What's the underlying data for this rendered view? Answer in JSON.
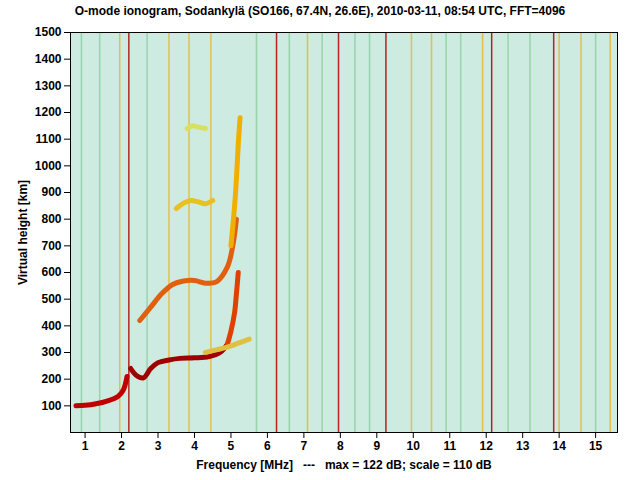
{
  "chart_data": {
    "type": "line",
    "title": "O-mode ionogram, Sodankylä (SO166, 67.4N, 26.6E), 2010-03-11, 08:54 UTC, FFT=4096",
    "x_label": "Frequency [MHz]   ---   max = 122 dB; scale = 110 dB",
    "y_label": "Virtual height [km]",
    "xlim": [
      0.6,
      15.6
    ],
    "xticks": [
      1,
      2,
      3,
      4,
      5,
      6,
      7,
      8,
      9,
      10,
      11,
      12,
      13,
      14,
      15
    ],
    "ylim": [
      0,
      1500
    ],
    "yticks": [
      100,
      200,
      300,
      400,
      500,
      600,
      700,
      800,
      900,
      1000,
      1100,
      1200,
      1300,
      1400,
      1500
    ],
    "grid": false,
    "series": [
      {
        "type": "rule",
        "color": "#b00000",
        "x": [
          2.2,
          6.25,
          7.95,
          9.25,
          12.15,
          13.85
        ]
      },
      {
        "type": "rule",
        "color": "#e8b830",
        "x": [
          1.95,
          3.3,
          3.85,
          4.45,
          7.1,
          9.95,
          10.5,
          11.9,
          14.0,
          14.6,
          15.4
        ]
      },
      {
        "type": "rule",
        "color": "#8fd0a0",
        "x": [
          0.9,
          1.4,
          2.7,
          5.7,
          6.6,
          7.5,
          8.4,
          8.8,
          10.9,
          11.3,
          12.6,
          13.2,
          15.0
        ]
      },
      {
        "type": "line",
        "color": "#c00000",
        "x": [
          0.75,
          1.0,
          1.3,
          1.6,
          1.9,
          2.05,
          2.15
        ],
        "values": [
          100,
          102,
          108,
          118,
          135,
          160,
          210
        ]
      },
      {
        "type": "line",
        "color": "#a00000",
        "x": [
          2.25,
          2.4,
          2.6,
          2.8,
          3.0,
          3.3,
          3.6,
          4.0,
          4.4,
          4.7,
          4.9
        ],
        "values": [
          240,
          215,
          205,
          240,
          262,
          272,
          278,
          280,
          285,
          300,
          330
        ]
      },
      {
        "type": "line",
        "color": "#e04000",
        "x": [
          4.9,
          5.0,
          5.1,
          5.15,
          5.2
        ],
        "values": [
          330,
          380,
          450,
          520,
          600
        ]
      },
      {
        "type": "line",
        "color": "#e06010",
        "x": [
          2.5,
          2.8,
          3.1,
          3.4,
          3.7,
          4.0,
          4.3,
          4.6,
          4.9,
          5.05,
          5.15
        ],
        "values": [
          420,
          470,
          520,
          555,
          568,
          570,
          560,
          565,
          620,
          700,
          800
        ]
      },
      {
        "type": "line",
        "color": "#f0b000",
        "x": [
          5.0,
          5.1,
          5.15,
          5.2,
          5.25
        ],
        "values": [
          700,
          850,
          950,
          1080,
          1180
        ]
      },
      {
        "type": "line",
        "color": "#e8c020",
        "x": [
          3.5,
          3.7,
          3.9,
          4.1,
          4.3,
          4.5
        ],
        "values": [
          840,
          860,
          870,
          865,
          858,
          870
        ]
      },
      {
        "type": "line",
        "color": "#d8e060",
        "x": [
          3.8,
          3.95,
          4.1,
          4.3
        ],
        "values": [
          1140,
          1150,
          1145,
          1140
        ]
      },
      {
        "type": "line",
        "color": "#e0c040",
        "x": [
          4.3,
          4.6,
          4.9,
          5.2,
          5.5
        ],
        "values": [
          300,
          310,
          320,
          335,
          350
        ]
      }
    ]
  }
}
